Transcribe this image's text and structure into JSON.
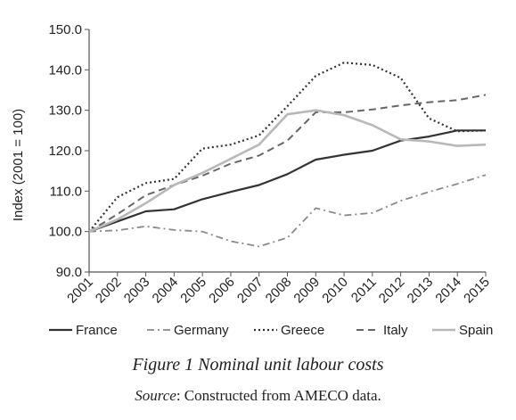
{
  "chart_data": {
    "type": "line",
    "x": [
      "2001",
      "2002",
      "2003",
      "2004",
      "2005",
      "2006",
      "2007",
      "2008",
      "2009",
      "2010",
      "2011",
      "2012",
      "2013",
      "2014",
      "2015"
    ],
    "ylabel": "Index (2001 = 100)",
    "xlabel": "",
    "ylim": [
      90,
      150
    ],
    "yticks": [
      "90.0",
      "100.0",
      "110.0",
      "120.0",
      "130.0",
      "140.0",
      "150.0"
    ],
    "grid": false,
    "legend_position": "bottom",
    "series": [
      {
        "name": "France",
        "style": "solid",
        "color": "#333333",
        "values": [
          100.0,
          102.5,
          105.0,
          105.5,
          108.0,
          109.8,
          111.5,
          114.2,
          117.8,
          119.0,
          120.0,
          122.5,
          123.5,
          125.0,
          125.0
        ]
      },
      {
        "name": "Germany",
        "style": "dashdot",
        "color": "#8a8a8a",
        "values": [
          100.0,
          100.3,
          101.3,
          100.4,
          100.0,
          97.6,
          96.3,
          98.5,
          105.8,
          104.0,
          104.6,
          107.6,
          109.8,
          111.8,
          114.0
        ]
      },
      {
        "name": "Greece",
        "style": "dotted",
        "color": "#333333",
        "values": [
          100.0,
          108.5,
          112.0,
          113.0,
          120.5,
          121.5,
          123.8,
          131.0,
          138.5,
          141.8,
          141.2,
          138.0,
          128.0,
          124.8,
          125.0
        ]
      },
      {
        "name": "Italy",
        "style": "dashed",
        "color": "#666666",
        "values": [
          100.0,
          104.3,
          109.0,
          111.5,
          113.8,
          116.8,
          118.8,
          122.5,
          129.5,
          129.5,
          130.2,
          131.2,
          132.0,
          132.5,
          133.8
        ]
      },
      {
        "name": "Spain",
        "style": "solid",
        "color": "#b8b8b8",
        "values": [
          100.0,
          103.0,
          107.0,
          111.5,
          114.5,
          118.0,
          121.5,
          129.0,
          130.0,
          128.8,
          126.3,
          122.8,
          122.3,
          121.2,
          121.5
        ]
      }
    ]
  },
  "caption": {
    "title": "Figure 1  Nominal unit labour costs",
    "source_label": "Source",
    "source_text": ": Constructed from AMECO data."
  }
}
